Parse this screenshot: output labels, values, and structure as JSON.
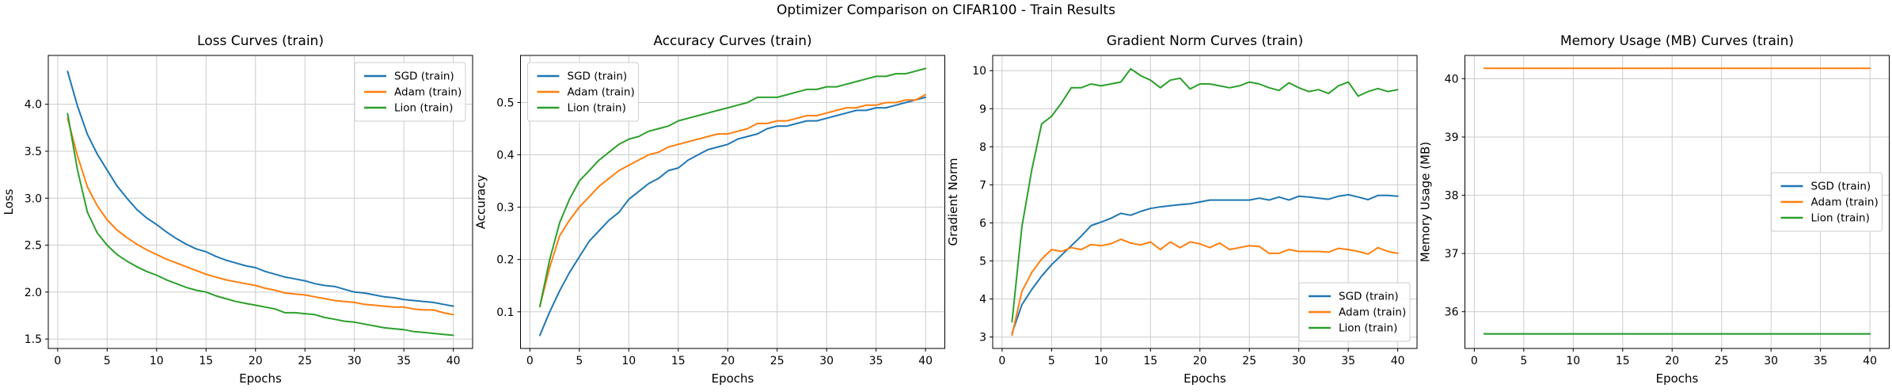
{
  "figure": {
    "suptitle": "Optimizer Comparison on CIFAR100 - Train Results",
    "background": "#ffffff"
  },
  "style": {
    "grid_color": "#cccccc",
    "spine_color": "#000000",
    "legend_border": "#cccccc",
    "legend_bg": "#ffffff",
    "series_colors": {
      "sgd": "#1f77b4",
      "adam": "#ff7f0e",
      "lion": "#2ca02c"
    }
  },
  "chart_data": [
    {
      "type": "line",
      "title": "Loss Curves (train)",
      "xlabel": "Epochs",
      "ylabel": "Loss",
      "x_range": [
        1,
        40
      ],
      "xlim": [
        -0.95,
        41.95
      ],
      "ylim": [
        1.4,
        4.52
      ],
      "xticks": [
        0,
        5,
        10,
        15,
        20,
        25,
        30,
        35,
        40
      ],
      "xtick_labels": [
        "0",
        "5",
        "10",
        "15",
        "20",
        "25",
        "30",
        "35",
        "40"
      ],
      "yticks": [
        1.5,
        2.0,
        2.5,
        3.0,
        3.5,
        4.0
      ],
      "ytick_labels": [
        "1.5",
        "2.0",
        "2.5",
        "3.0",
        "3.5",
        "4.0"
      ],
      "grid": true,
      "legend_loc": "upper-right",
      "series": [
        {
          "name": "SGD (train)",
          "color": "#1f77b4",
          "values": [
            4.35,
            3.98,
            3.68,
            3.47,
            3.3,
            3.13,
            3.0,
            2.88,
            2.79,
            2.72,
            2.64,
            2.57,
            2.51,
            2.46,
            2.43,
            2.38,
            2.34,
            2.31,
            2.28,
            2.26,
            2.22,
            2.19,
            2.16,
            2.14,
            2.12,
            2.09,
            2.07,
            2.06,
            2.03,
            2.0,
            1.99,
            1.97,
            1.95,
            1.94,
            1.92,
            1.91,
            1.9,
            1.89,
            1.87,
            1.85
          ]
        },
        {
          "name": "Adam (train)",
          "color": "#ff7f0e",
          "values": [
            3.85,
            3.45,
            3.12,
            2.92,
            2.77,
            2.66,
            2.58,
            2.51,
            2.45,
            2.4,
            2.35,
            2.31,
            2.27,
            2.23,
            2.19,
            2.16,
            2.13,
            2.11,
            2.09,
            2.07,
            2.04,
            2.02,
            1.99,
            1.98,
            1.97,
            1.95,
            1.93,
            1.91,
            1.9,
            1.89,
            1.87,
            1.86,
            1.85,
            1.84,
            1.84,
            1.82,
            1.81,
            1.81,
            1.78,
            1.76
          ]
        },
        {
          "name": "Lion (train)",
          "color": "#2ca02c",
          "values": [
            3.9,
            3.3,
            2.85,
            2.63,
            2.5,
            2.4,
            2.33,
            2.27,
            2.22,
            2.18,
            2.13,
            2.09,
            2.05,
            2.02,
            2.0,
            1.96,
            1.93,
            1.9,
            1.88,
            1.86,
            1.84,
            1.82,
            1.78,
            1.78,
            1.77,
            1.76,
            1.73,
            1.71,
            1.69,
            1.68,
            1.66,
            1.64,
            1.62,
            1.61,
            1.6,
            1.58,
            1.57,
            1.56,
            1.55,
            1.54
          ]
        }
      ]
    },
    {
      "type": "line",
      "title": "Accuracy Curves (train)",
      "xlabel": "Epochs",
      "ylabel": "Accuracy",
      "x_range": [
        1,
        40
      ],
      "xlim": [
        -0.95,
        41.95
      ],
      "ylim": [
        0.03,
        0.59
      ],
      "xticks": [
        0,
        5,
        10,
        15,
        20,
        25,
        30,
        35,
        40
      ],
      "xtick_labels": [
        "0",
        "5",
        "10",
        "15",
        "20",
        "25",
        "30",
        "35",
        "40"
      ],
      "yticks": [
        0.1,
        0.2,
        0.3,
        0.4,
        0.5
      ],
      "ytick_labels": [
        "0.1",
        "0.2",
        "0.3",
        "0.4",
        "0.5"
      ],
      "grid": true,
      "legend_loc": "upper-left",
      "series": [
        {
          "name": "SGD (train)",
          "color": "#1f77b4",
          "values": [
            0.055,
            0.1,
            0.14,
            0.175,
            0.205,
            0.235,
            0.255,
            0.275,
            0.29,
            0.315,
            0.33,
            0.345,
            0.355,
            0.37,
            0.375,
            0.39,
            0.4,
            0.41,
            0.415,
            0.42,
            0.43,
            0.435,
            0.44,
            0.45,
            0.455,
            0.455,
            0.46,
            0.465,
            0.465,
            0.47,
            0.475,
            0.48,
            0.485,
            0.485,
            0.49,
            0.49,
            0.495,
            0.5,
            0.505,
            0.51
          ]
        },
        {
          "name": "Adam (train)",
          "color": "#ff7f0e",
          "values": [
            0.11,
            0.185,
            0.245,
            0.275,
            0.3,
            0.32,
            0.34,
            0.355,
            0.37,
            0.38,
            0.39,
            0.4,
            0.405,
            0.415,
            0.42,
            0.425,
            0.43,
            0.435,
            0.44,
            0.44,
            0.445,
            0.45,
            0.46,
            0.46,
            0.465,
            0.465,
            0.47,
            0.475,
            0.475,
            0.48,
            0.485,
            0.49,
            0.49,
            0.495,
            0.495,
            0.5,
            0.5,
            0.505,
            0.505,
            0.515
          ]
        },
        {
          "name": "Lion (train)",
          "color": "#2ca02c",
          "values": [
            0.11,
            0.2,
            0.27,
            0.315,
            0.35,
            0.37,
            0.39,
            0.405,
            0.42,
            0.43,
            0.435,
            0.445,
            0.45,
            0.455,
            0.465,
            0.47,
            0.475,
            0.48,
            0.485,
            0.49,
            0.495,
            0.5,
            0.51,
            0.51,
            0.51,
            0.515,
            0.52,
            0.525,
            0.525,
            0.53,
            0.53,
            0.535,
            0.54,
            0.545,
            0.55,
            0.55,
            0.555,
            0.555,
            0.56,
            0.565
          ]
        }
      ]
    },
    {
      "type": "line",
      "title": "Gradient Norm Curves (train)",
      "xlabel": "Epochs",
      "ylabel": "Gradient Norm",
      "x_range": [
        1,
        40
      ],
      "xlim": [
        -0.95,
        41.95
      ],
      "ylim": [
        2.7,
        10.4
      ],
      "xticks": [
        0,
        5,
        10,
        15,
        20,
        25,
        30,
        35,
        40
      ],
      "xtick_labels": [
        "0",
        "5",
        "10",
        "15",
        "20",
        "25",
        "30",
        "35",
        "40"
      ],
      "yticks": [
        3,
        4,
        5,
        6,
        7,
        8,
        9,
        10
      ],
      "ytick_labels": [
        "3",
        "4",
        "5",
        "6",
        "7",
        "8",
        "9",
        "10"
      ],
      "grid": true,
      "legend_loc": "lower-right",
      "series": [
        {
          "name": "SGD (train)",
          "color": "#1f77b4",
          "values": [
            3.1,
            3.85,
            4.25,
            4.6,
            4.9,
            5.15,
            5.4,
            5.65,
            5.93,
            6.02,
            6.12,
            6.25,
            6.2,
            6.3,
            6.38,
            6.42,
            6.45,
            6.48,
            6.5,
            6.55,
            6.6,
            6.6,
            6.6,
            6.6,
            6.6,
            6.65,
            6.6,
            6.68,
            6.6,
            6.7,
            6.68,
            6.65,
            6.62,
            6.7,
            6.74,
            6.68,
            6.61,
            6.72,
            6.72,
            6.7
          ]
        },
        {
          "name": "Adam (train)",
          "color": "#ff7f0e",
          "values": [
            3.05,
            4.2,
            4.7,
            5.05,
            5.3,
            5.25,
            5.35,
            5.3,
            5.43,
            5.4,
            5.45,
            5.57,
            5.47,
            5.42,
            5.5,
            5.3,
            5.5,
            5.35,
            5.5,
            5.45,
            5.35,
            5.47,
            5.3,
            5.35,
            5.4,
            5.38,
            5.2,
            5.2,
            5.3,
            5.25,
            5.25,
            5.25,
            5.23,
            5.33,
            5.3,
            5.25,
            5.18,
            5.35,
            5.25,
            5.2
          ]
        },
        {
          "name": "Lion (train)",
          "color": "#2ca02c",
          "values": [
            3.4,
            5.9,
            7.4,
            8.6,
            8.8,
            9.15,
            9.55,
            9.55,
            9.65,
            9.6,
            9.65,
            9.7,
            10.05,
            9.87,
            9.75,
            9.55,
            9.75,
            9.8,
            9.52,
            9.65,
            9.65,
            9.6,
            9.55,
            9.6,
            9.7,
            9.65,
            9.55,
            9.48,
            9.68,
            9.55,
            9.45,
            9.5,
            9.4,
            9.6,
            9.7,
            9.33,
            9.45,
            9.53,
            9.45,
            9.5
          ]
        }
      ]
    },
    {
      "type": "line",
      "title": "Memory Usage (MB) Curves (train)",
      "xlabel": "Epochs",
      "ylabel": "Memory Usage (MB)",
      "x_range": [
        1,
        40
      ],
      "xlim": [
        -0.95,
        41.95
      ],
      "ylim": [
        35.37,
        40.4
      ],
      "xticks": [
        0,
        5,
        10,
        15,
        20,
        25,
        30,
        35,
        40
      ],
      "xtick_labels": [
        "0",
        "5",
        "10",
        "15",
        "20",
        "25",
        "30",
        "35",
        "40"
      ],
      "yticks": [
        36,
        37,
        38,
        39,
        40
      ],
      "ytick_labels": [
        "36",
        "37",
        "38",
        "39",
        "40"
      ],
      "grid": true,
      "legend_loc": "center-right",
      "note": "SGD line is flat and hidden beneath the Lion line",
      "series": [
        {
          "name": "SGD (train)",
          "color": "#1f77b4",
          "constant": 35.62
        },
        {
          "name": "Adam (train)",
          "color": "#ff7f0e",
          "constant": 40.18
        },
        {
          "name": "Lion (train)",
          "color": "#2ca02c",
          "constant": 35.62
        }
      ]
    }
  ]
}
